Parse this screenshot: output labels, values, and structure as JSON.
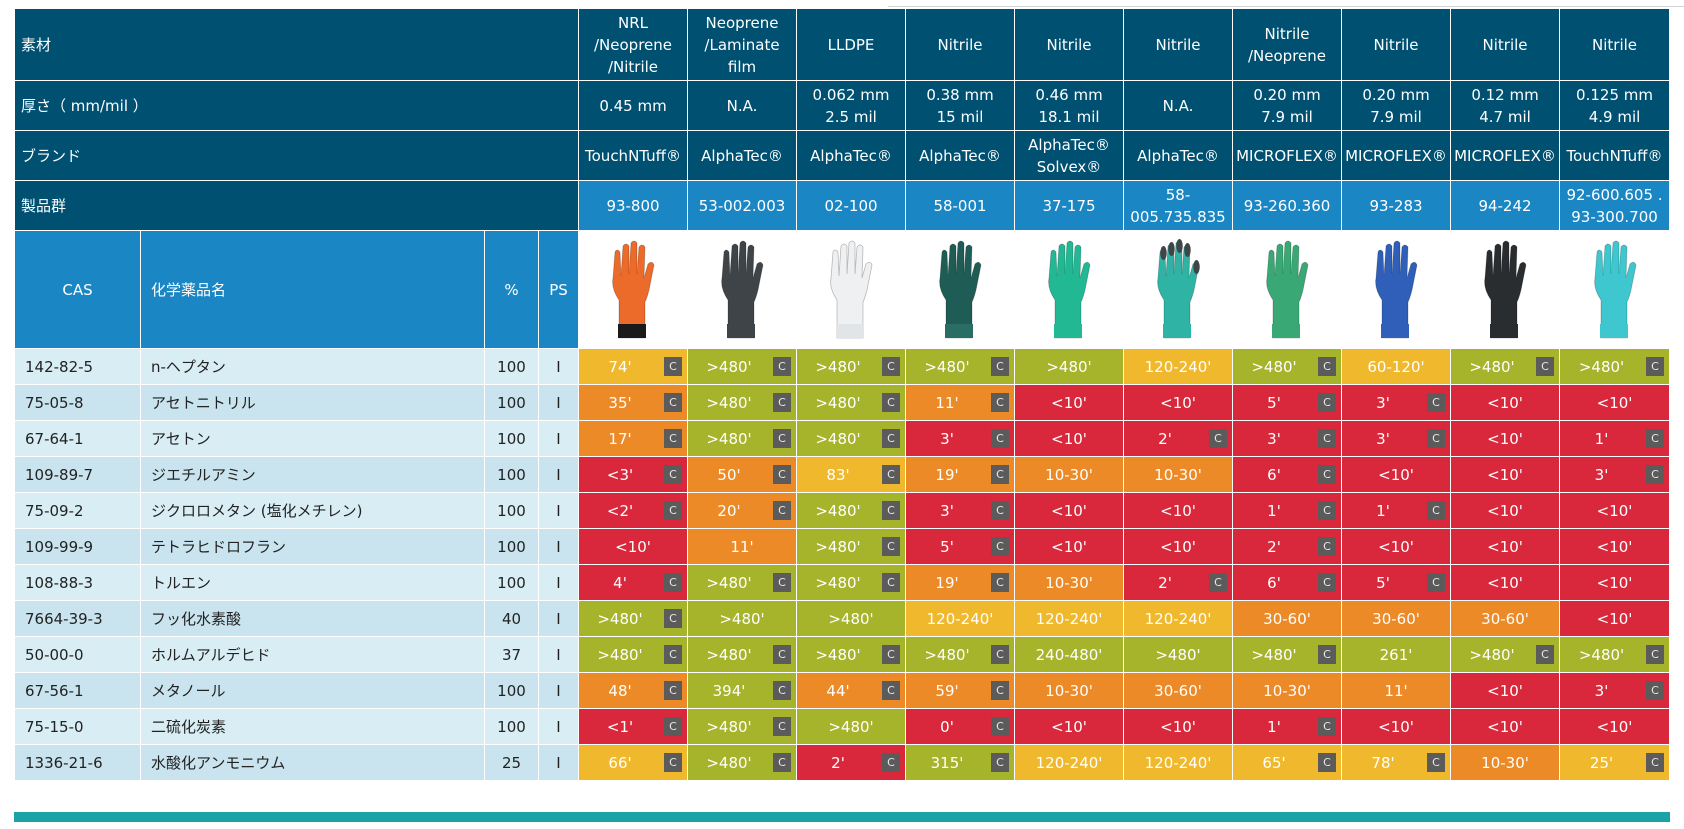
{
  "header_rows": {
    "material_label": "素材",
    "thickness_label": "厚さ（ mm/mil ）",
    "brand_label": "ブランド",
    "product_label": "製品群"
  },
  "columns_header": {
    "cas": "CAS",
    "name": "化学薬品名",
    "percent": "%",
    "ps": "PS"
  },
  "gloves": [
    {
      "material": [
        "NRL",
        "/Neoprene",
        "/Nitrile"
      ],
      "thickness": [
        "0.45 mm"
      ],
      "brand": [
        "TouchNTuff®"
      ],
      "product": [
        "93-800"
      ],
      "color": "#ec6a2a",
      "cuff": "#1a1a1a"
    },
    {
      "material": [
        "Neoprene",
        "/Laminate",
        "film"
      ],
      "thickness": [
        "N.A."
      ],
      "brand": [
        "AlphaTec®"
      ],
      "product": [
        "53-002.003"
      ],
      "color": "#3e4448",
      "cuff": "#3e4448"
    },
    {
      "material": [
        "LLDPE"
      ],
      "thickness": [
        "0.062 mm",
        "2.5 mil"
      ],
      "brand": [
        "AlphaTec®"
      ],
      "product": [
        "02-100"
      ],
      "color": "#eef0f2",
      "cuff": "#e2e5e8"
    },
    {
      "material": [
        "Nitrile"
      ],
      "thickness": [
        "0.38 mm",
        "15 mil"
      ],
      "brand": [
        "AlphaTec®"
      ],
      "product": [
        "58-001"
      ],
      "color": "#1f5c55",
      "cuff": "#2a6d64"
    },
    {
      "material": [
        "Nitrile"
      ],
      "thickness": [
        "0.46 mm",
        "18.1 mil"
      ],
      "brand": [
        "AlphaTec®",
        "Solvex®"
      ],
      "product": [
        "37-175"
      ],
      "color": "#23b894",
      "cuff": "#23b894"
    },
    {
      "material": [
        "Nitrile"
      ],
      "thickness": [
        "N.A."
      ],
      "brand": [
        "AlphaTec®"
      ],
      "product": [
        "58-",
        "005.735.835"
      ],
      "color": "#2fb3a4",
      "cuff": "#2fb3a4",
      "tips": "#404548"
    },
    {
      "material": [
        "Nitrile",
        "/Neoprene"
      ],
      "thickness": [
        "0.20 mm",
        "7.9 mil"
      ],
      "brand": [
        "MICROFLEX®"
      ],
      "product": [
        "93-260.360"
      ],
      "color": "#3aa875",
      "cuff": "#3aa875"
    },
    {
      "material": [
        "Nitrile"
      ],
      "thickness": [
        "0.20 mm",
        "7.9 mil"
      ],
      "brand": [
        "MICROFLEX®"
      ],
      "product": [
        "93-283"
      ],
      "color": "#2f5fb8",
      "cuff": "#2f5fb8"
    },
    {
      "material": [
        "Nitrile"
      ],
      "thickness": [
        "0.12 mm",
        "4.7 mil"
      ],
      "brand": [
        "MICROFLEX®"
      ],
      "product": [
        "94-242"
      ],
      "color": "#2a2d30",
      "cuff": "#2a2d30"
    },
    {
      "material": [
        "Nitrile"
      ],
      "thickness": [
        "0.125 mm",
        "4.9 mil"
      ],
      "brand": [
        "TouchNTuff®"
      ],
      "product": [
        "92-600.605 .",
        "93-300.700"
      ],
      "color": "#3ec7cf",
      "cuff": "#3ec7cf"
    }
  ],
  "rows": [
    {
      "cas": "142-82-5",
      "name": "n-ヘプタン",
      "pct": "100",
      "ps": "I",
      "results": [
        [
          "74'",
          "y",
          1
        ],
        [
          ">480'",
          "g",
          1
        ],
        [
          ">480'",
          "g",
          1
        ],
        [
          ">480'",
          "g",
          1
        ],
        [
          ">480'",
          "g",
          0
        ],
        [
          "120-240'",
          "y",
          0
        ],
        [
          ">480'",
          "g",
          1
        ],
        [
          "60-120'",
          "y",
          0
        ],
        [
          ">480'",
          "g",
          1
        ],
        [
          ">480'",
          "g",
          1
        ]
      ]
    },
    {
      "cas": "75-05-8",
      "name": "アセトニトリル",
      "pct": "100",
      "ps": "I",
      "results": [
        [
          "35'",
          "o",
          1
        ],
        [
          ">480'",
          "g",
          1
        ],
        [
          ">480'",
          "g",
          1
        ],
        [
          "11'",
          "o",
          1
        ],
        [
          "<10'",
          "r",
          0
        ],
        [
          "<10'",
          "r",
          0
        ],
        [
          "5'",
          "r",
          1
        ],
        [
          "3'",
          "r",
          1
        ],
        [
          "<10'",
          "r",
          0
        ],
        [
          "<10'",
          "r",
          0
        ]
      ]
    },
    {
      "cas": "67-64-1",
      "name": "アセトン",
      "pct": "100",
      "ps": "I",
      "results": [
        [
          "17'",
          "o",
          1
        ],
        [
          ">480'",
          "g",
          1
        ],
        [
          ">480'",
          "g",
          1
        ],
        [
          "3'",
          "r",
          1
        ],
        [
          "<10'",
          "r",
          0
        ],
        [
          "2'",
          "r",
          1
        ],
        [
          "3'",
          "r",
          1
        ],
        [
          "3'",
          "r",
          1
        ],
        [
          "<10'",
          "r",
          0
        ],
        [
          "1'",
          "r",
          1
        ]
      ]
    },
    {
      "cas": "109-89-7",
      "name": "ジエチルアミン",
      "pct": "100",
      "ps": "I",
      "results": [
        [
          "<3'",
          "r",
          1
        ],
        [
          "50'",
          "o",
          1
        ],
        [
          "83'",
          "y",
          1
        ],
        [
          "19'",
          "o",
          1
        ],
        [
          "10-30'",
          "o",
          0
        ],
        [
          "10-30'",
          "o",
          0
        ],
        [
          "6'",
          "r",
          1
        ],
        [
          "<10'",
          "r",
          0
        ],
        [
          "<10'",
          "r",
          0
        ],
        [
          "3'",
          "r",
          1
        ]
      ]
    },
    {
      "cas": "75-09-2",
      "name": "ジクロロメタン (塩化メチレン)",
      "pct": "100",
      "ps": "I",
      "results": [
        [
          "<2'",
          "r",
          1
        ],
        [
          "20'",
          "o",
          1
        ],
        [
          ">480'",
          "g",
          1
        ],
        [
          "3'",
          "r",
          1
        ],
        [
          "<10'",
          "r",
          0
        ],
        [
          "<10'",
          "r",
          0
        ],
        [
          "1'",
          "r",
          1
        ],
        [
          "1'",
          "r",
          1
        ],
        [
          "<10'",
          "r",
          0
        ],
        [
          "<10'",
          "r",
          0
        ]
      ]
    },
    {
      "cas": "109-99-9",
      "name": "テトラヒドロフラン",
      "pct": "100",
      "ps": "I",
      "results": [
        [
          "<10'",
          "r",
          0
        ],
        [
          "11'",
          "o",
          0
        ],
        [
          ">480'",
          "g",
          1
        ],
        [
          "5'",
          "r",
          1
        ],
        [
          "<10'",
          "r",
          0
        ],
        [
          "<10'",
          "r",
          0
        ],
        [
          "2'",
          "r",
          1
        ],
        [
          "<10'",
          "r",
          0
        ],
        [
          "<10'",
          "r",
          0
        ],
        [
          "<10'",
          "r",
          0
        ]
      ]
    },
    {
      "cas": "108-88-3",
      "name": "トルエン",
      "pct": "100",
      "ps": "I",
      "results": [
        [
          "4'",
          "r",
          1
        ],
        [
          ">480'",
          "g",
          1
        ],
        [
          ">480'",
          "g",
          1
        ],
        [
          "19'",
          "o",
          1
        ],
        [
          "10-30'",
          "o",
          0
        ],
        [
          "2'",
          "r",
          1
        ],
        [
          "6'",
          "r",
          1
        ],
        [
          "5'",
          "r",
          1
        ],
        [
          "<10'",
          "r",
          0
        ],
        [
          "<10'",
          "r",
          0
        ]
      ]
    },
    {
      "cas": "7664-39-3",
      "name": "フッ化水素酸",
      "pct": "40",
      "ps": "I",
      "results": [
        [
          ">480'",
          "g",
          1
        ],
        [
          ">480'",
          "g",
          0
        ],
        [
          ">480'",
          "g",
          0
        ],
        [
          "120-240'",
          "y",
          0
        ],
        [
          "120-240'",
          "y",
          0
        ],
        [
          "120-240'",
          "y",
          0
        ],
        [
          "30-60'",
          "o",
          0
        ],
        [
          "30-60'",
          "o",
          0
        ],
        [
          "30-60'",
          "o",
          0
        ],
        [
          "<10'",
          "r",
          0
        ]
      ]
    },
    {
      "cas": "50-00-0",
      "name": "ホルムアルデヒド",
      "pct": "37",
      "ps": "I",
      "results": [
        [
          ">480'",
          "g",
          1
        ],
        [
          ">480'",
          "g",
          1
        ],
        [
          ">480'",
          "g",
          1
        ],
        [
          ">480'",
          "g",
          1
        ],
        [
          "240-480'",
          "g",
          0
        ],
        [
          ">480'",
          "g",
          0
        ],
        [
          ">480'",
          "g",
          1
        ],
        [
          "261'",
          "g",
          0
        ],
        [
          ">480'",
          "g",
          1
        ],
        [
          ">480'",
          "g",
          1
        ]
      ]
    },
    {
      "cas": "67-56-1",
      "name": "メタノール",
      "pct": "100",
      "ps": "I",
      "results": [
        [
          "48'",
          "o",
          1
        ],
        [
          "394'",
          "g",
          1
        ],
        [
          "44'",
          "o",
          1
        ],
        [
          "59'",
          "o",
          1
        ],
        [
          "10-30'",
          "o",
          0
        ],
        [
          "30-60'",
          "o",
          0
        ],
        [
          "10-30'",
          "o",
          0
        ],
        [
          "11'",
          "o",
          0
        ],
        [
          "<10'",
          "r",
          0
        ],
        [
          "3'",
          "r",
          1
        ]
      ]
    },
    {
      "cas": "75-15-0",
      "name": "二硫化炭素",
      "pct": "100",
      "ps": "I",
      "results": [
        [
          "<1'",
          "r",
          1
        ],
        [
          ">480'",
          "g",
          1
        ],
        [
          ">480'",
          "g",
          0
        ],
        [
          "0'",
          "r",
          1
        ],
        [
          "<10'",
          "r",
          0
        ],
        [
          "<10'",
          "r",
          0
        ],
        [
          "1'",
          "r",
          1
        ],
        [
          "<10'",
          "r",
          0
        ],
        [
          "<10'",
          "r",
          0
        ],
        [
          "<10'",
          "r",
          0
        ]
      ]
    },
    {
      "cas": "1336-21-6",
      "name": "水酸化アンモニウム",
      "pct": "25",
      "ps": "I",
      "results": [
        [
          "66'",
          "y",
          1
        ],
        [
          ">480'",
          "g",
          1
        ],
        [
          "2'",
          "r",
          1
        ],
        [
          "315'",
          "g",
          1
        ],
        [
          "120-240'",
          "y",
          0
        ],
        [
          "120-240'",
          "y",
          0
        ],
        [
          "65'",
          "y",
          1
        ],
        [
          "78'",
          "y",
          1
        ],
        [
          "10-30'",
          "o",
          0
        ],
        [
          "25'",
          "y",
          1
        ]
      ]
    }
  ],
  "c_badge": "C",
  "colors": {
    "header_dark": "#005071",
    "header_blue": "#1a86c3",
    "green": "#a6b42c",
    "yellow": "#f0b82c",
    "orange": "#ec8a28",
    "red": "#d9283b",
    "row_light": "#d9eef4",
    "footer": "#1aa3a6"
  }
}
